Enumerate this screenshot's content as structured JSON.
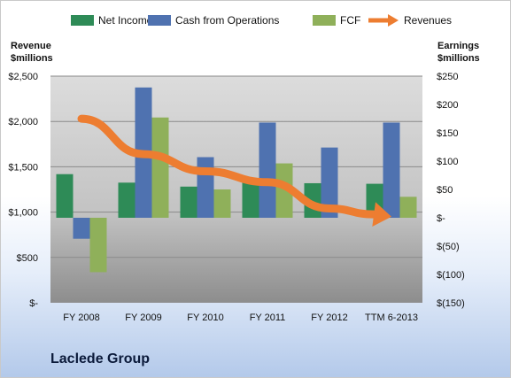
{
  "chart_data": {
    "type": "bar",
    "categories": [
      "FY 2008",
      "FY 2009",
      "FY 2010",
      "FY 2011",
      "FY 2012",
      "TTM 6-2013"
    ],
    "series": [
      {
        "name": "Net Income",
        "axis": "right",
        "values": [
          77,
          62,
          55,
          62,
          61,
          60
        ],
        "color": "#2e8b57"
      },
      {
        "name": "Cash from Operations",
        "axis": "right",
        "values": [
          -37,
          230,
          107,
          168,
          124,
          168
        ],
        "color": "#4f72b0"
      },
      {
        "name": "FCF",
        "axis": "right",
        "values": [
          -96,
          177,
          50,
          96,
          0,
          37
        ],
        "color": "#8fb05a"
      },
      {
        "name": "Revenues",
        "axis": "left",
        "type": "line",
        "values": [
          2030,
          1640,
          1450,
          1330,
          1040,
          950
        ],
        "color": "#ed7d31"
      }
    ],
    "left_axis": {
      "label": "Revenue\n$millions",
      "ylim": [
        0,
        2500
      ],
      "ticks": [
        0,
        500,
        1000,
        1500,
        2000,
        2500
      ],
      "tick_labels": [
        "$-",
        "$500",
        "$1,000",
        "$1,500",
        "$2,000",
        "$2,500"
      ]
    },
    "right_axis": {
      "label": "Earnings\n$millions",
      "ylim": [
        -150,
        250
      ],
      "ticks": [
        -150,
        -100,
        -50,
        0,
        50,
        100,
        150,
        200,
        250
      ],
      "tick_labels": [
        "$(150)",
        "$(100)",
        "$(50)",
        "$-",
        "$50",
        "$100",
        "$150",
        "$200",
        "$250"
      ]
    },
    "grid": true,
    "legend_position": "top"
  },
  "company_name": "Laclede Group"
}
